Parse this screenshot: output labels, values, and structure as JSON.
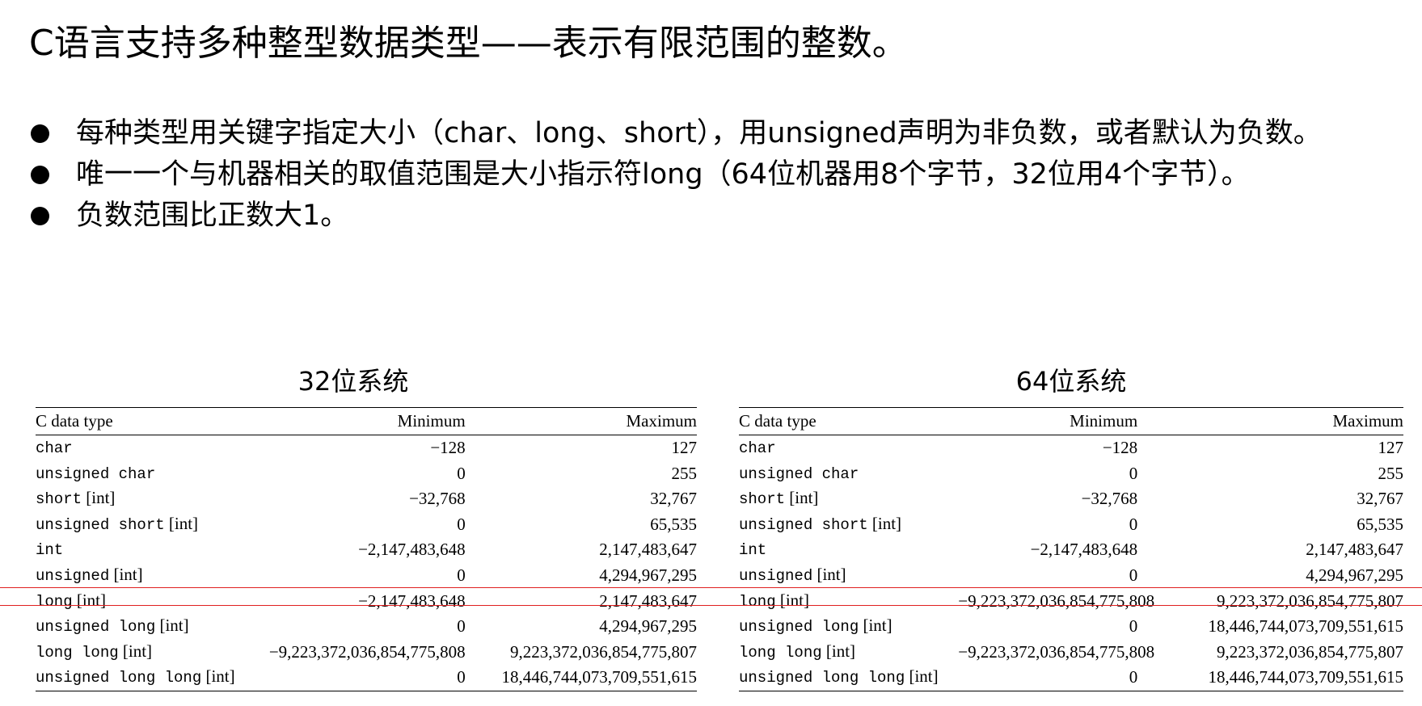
{
  "slide": {
    "title": "C语言支持多种整型数据类型——表示有限范围的整数。",
    "bullets": [
      "每种类型用关键字指定大小（char、long、short），用unsigned声明为非负数，或者默认为负数。",
      "唯一一个与机器相关的取值范围是大小指示符long（64位机器用8个字节，32位用4个字节）。",
      "负数范围比正数大1。"
    ]
  },
  "colors": {
    "highlight": "#e02020",
    "text": "#000000"
  },
  "tables": [
    {
      "caption": "32位系统",
      "headers": [
        "C data type",
        "Minimum",
        "Maximum"
      ],
      "rows": [
        {
          "type_kw": "char",
          "type_sfx": "",
          "min": "−128",
          "max": "127"
        },
        {
          "type_kw": "unsigned char",
          "type_sfx": "",
          "min": "0",
          "max": "255"
        },
        {
          "type_kw": "short",
          "type_sfx": " [int]",
          "min": "−32,768",
          "max": "32,767"
        },
        {
          "type_kw": "unsigned short",
          "type_sfx": " [int]",
          "min": "0",
          "max": "65,535"
        },
        {
          "type_kw": "int",
          "type_sfx": "",
          "min": "−2,147,483,648",
          "max": "2,147,483,647"
        },
        {
          "type_kw": "unsigned",
          "type_sfx": " [int]",
          "min": "0",
          "max": "4,294,967,295"
        },
        {
          "type_kw": "long",
          "type_sfx": " [int]",
          "min": "−2,147,483,648",
          "max": "2,147,483,647"
        },
        {
          "type_kw": "unsigned long",
          "type_sfx": " [int]",
          "min": "0",
          "max": "4,294,967,295"
        },
        {
          "type_kw": "long long",
          "type_sfx": " [int]",
          "min": "−9,223,372,036,854,775,808",
          "max": "9,223,372,036,854,775,807"
        },
        {
          "type_kw": "unsigned long long",
          "type_sfx": " [int]",
          "min": "0",
          "max": "18,446,744,073,709,551,615"
        }
      ]
    },
    {
      "caption": "64位系统",
      "headers": [
        "C data type",
        "Minimum",
        "Maximum"
      ],
      "rows": [
        {
          "type_kw": "char",
          "type_sfx": "",
          "min": "−128",
          "max": "127"
        },
        {
          "type_kw": "unsigned char",
          "type_sfx": "",
          "min": "0",
          "max": "255"
        },
        {
          "type_kw": "short",
          "type_sfx": " [int]",
          "min": "−32,768",
          "max": "32,767"
        },
        {
          "type_kw": "unsigned short",
          "type_sfx": " [int]",
          "min": "0",
          "max": "65,535"
        },
        {
          "type_kw": "int",
          "type_sfx": "",
          "min": "−2,147,483,648",
          "max": "2,147,483,647"
        },
        {
          "type_kw": "unsigned",
          "type_sfx": " [int]",
          "min": "0",
          "max": "4,294,967,295"
        },
        {
          "type_kw": "long",
          "type_sfx": " [int]",
          "min": "−9,223,372,036,854,775,808",
          "max": "9,223,372,036,854,775,807"
        },
        {
          "type_kw": "unsigned long",
          "type_sfx": " [int]",
          "min": "0",
          "max": "18,446,744,073,709,551,615"
        },
        {
          "type_kw": "long long",
          "type_sfx": " [int]",
          "min": "−9,223,372,036,854,775,808",
          "max": "9,223,372,036,854,775,807"
        },
        {
          "type_kw": "unsigned long long",
          "type_sfx": " [int]",
          "min": "0",
          "max": "18,446,744,073,709,551,615"
        }
      ]
    }
  ]
}
